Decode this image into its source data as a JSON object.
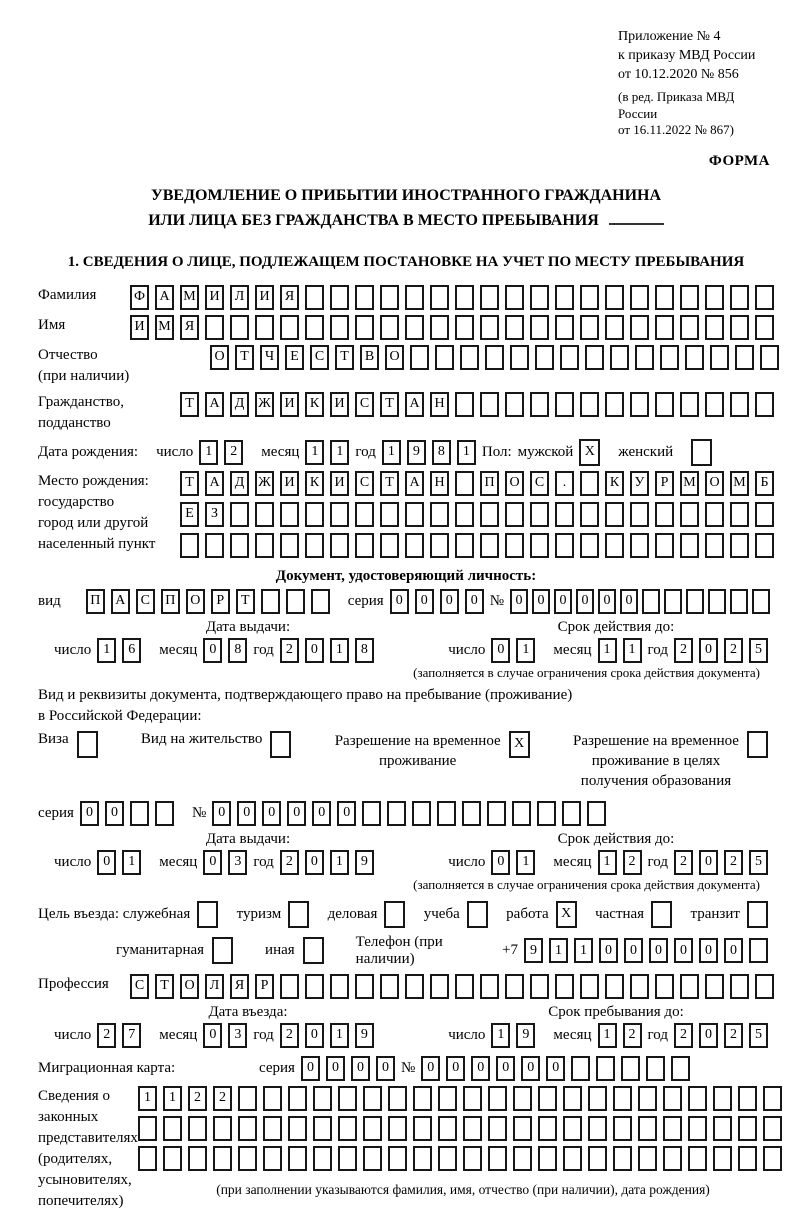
{
  "header": {
    "appendix_lines": [
      "Приложение № 4",
      "к приказу МВД России",
      "от 10.12.2020 № 856"
    ],
    "edition_lines": [
      "(в ред. Приказа МВД России",
      "от 16.11.2022 № 867)"
    ],
    "form_label": "ФОРМА"
  },
  "title": {
    "line1": "УВЕДОМЛЕНИЕ О ПРИБЫТИИ ИНОСТРАННОГО ГРАЖДАНИНА",
    "line2": "ИЛИ ЛИЦА БЕЗ ГРАЖДАНСТВА В МЕСТО ПРЕБЫВАНИЯ"
  },
  "section1_heading": "1. СВЕДЕНИЯ О ЛИЦЕ, ПОДЛЕЖАЩЕМ ПОСТАНОВКЕ НА УЧЕТ ПО МЕСТУ ПРЕБЫВАНИЯ",
  "labels": {
    "surname": "Фамилия",
    "name": "Имя",
    "patronymic": "Отчество",
    "patronymic2": "(при наличии)",
    "citizenship1": "Гражданство,",
    "citizenship2": "подданство",
    "birth_date": "Дата рождения:",
    "day": "число",
    "month": "месяц",
    "year": "год",
    "sex": "Пол:",
    "male": "мужской",
    "female": "женский",
    "birth_place1": "Место рождения:",
    "birth_place2": "государство",
    "birth_place3": "город или другой",
    "birth_place4": "населенный пункт",
    "identity_doc_heading": "Документ, удостоверяющий личность:",
    "doc_type": "вид",
    "series": "серия",
    "number": "№",
    "issue_date": "Дата выдачи:",
    "valid_until": "Срок действия до:",
    "valid_note": "(заполняется в случае ограничения срока действия документа)",
    "residence_doc_line1": "Вид и реквизиты документа, подтверждающего право на пребывание (проживание)",
    "residence_doc_line2": "в Российской Федерации:",
    "visa": "Виза",
    "residence_permit": "Вид на жительство",
    "temp_residence1": "Разрешение на временное",
    "temp_residence2": "проживание",
    "temp_residence_edu1": "Разрешение на временное",
    "temp_residence_edu2": "проживание в целях",
    "temp_residence_edu3": "получения образования",
    "entry_purpose": "Цель въезда: служебная",
    "tourism": "туризм",
    "business": "деловая",
    "study": "учеба",
    "work": "работа",
    "private": "частная",
    "transit": "транзит",
    "humanitarian": "гуманитарная",
    "other": "иная",
    "phone": "Телефон (при наличии)",
    "phone_prefix": "+7",
    "profession": "Профессия",
    "entry_date": "Дата въезда:",
    "stay_until": "Срок пребывания до:",
    "migration_card": "Миграционная карта:",
    "guardians1": "Сведения о",
    "guardians2": "законных",
    "guardians3": "представителях",
    "guardians4": "(родителях,",
    "guardians5": "усыновителях,",
    "guardians6": "попечителях)",
    "guardians_note": "(при заполнении указываются фамилия, имя, отчество (при наличии), дата рождения)"
  },
  "cells": {
    "surname": {
      "value": "ФАМИЛИЯ",
      "count": 26
    },
    "name": {
      "value": "ИМЯ",
      "count": 26
    },
    "patronymic": {
      "value": "ОТЧЕСТВО",
      "count": 23
    },
    "citizenship": {
      "value": "ТАДЖИКИСТАН",
      "count": 24
    },
    "birth_day": {
      "value": "12",
      "count": 2
    },
    "birth_month": {
      "value": "11",
      "count": 2
    },
    "birth_year": {
      "value": "1981",
      "count": 4
    },
    "male_box": {
      "value": "X",
      "count": 1
    },
    "female_box": {
      "value": "",
      "count": 1
    },
    "birth_place1": {
      "value": "ТАДЖИКИСТАН ПОС. КУРМОМБ",
      "count": 24
    },
    "birth_place2": {
      "value": "ЕЗ",
      "count": 24
    },
    "birth_place3": {
      "value": "",
      "count": 24
    },
    "doc_type": {
      "value": "ПАСПОРТ",
      "count": 10
    },
    "doc_series": {
      "value": "0000",
      "count": 4
    },
    "doc_number": {
      "value": "000000",
      "count": 12
    },
    "doc_issue_day": {
      "value": "16",
      "count": 2
    },
    "doc_issue_month": {
      "value": "08",
      "count": 2
    },
    "doc_issue_year": {
      "value": "2018",
      "count": 4
    },
    "doc_valid_day": {
      "value": "01",
      "count": 2
    },
    "doc_valid_month": {
      "value": "11",
      "count": 2
    },
    "doc_valid_year": {
      "value": "2025",
      "count": 4
    },
    "visa_box": {
      "value": "",
      "count": 1
    },
    "residence_permit_box": {
      "value": "",
      "count": 1
    },
    "temp_residence_box": {
      "value": "X",
      "count": 1
    },
    "temp_residence_edu_box": {
      "value": "",
      "count": 1
    },
    "res_series": {
      "value": "00",
      "count": 4
    },
    "res_number": {
      "value": "000000",
      "count": 16
    },
    "res_issue_day": {
      "value": "01",
      "count": 2
    },
    "res_issue_month": {
      "value": "03",
      "count": 2
    },
    "res_issue_year": {
      "value": "2019",
      "count": 4
    },
    "res_valid_day": {
      "value": "01",
      "count": 2
    },
    "res_valid_month": {
      "value": "12",
      "count": 2
    },
    "res_valid_year": {
      "value": "2025",
      "count": 4
    },
    "official_box": {
      "value": "",
      "count": 1
    },
    "tourism_box": {
      "value": "",
      "count": 1
    },
    "business_box": {
      "value": "",
      "count": 1
    },
    "study_box": {
      "value": "",
      "count": 1
    },
    "work_box": {
      "value": "X",
      "count": 1
    },
    "private_box": {
      "value": "",
      "count": 1
    },
    "transit_box": {
      "value": "",
      "count": 1
    },
    "humanitarian_box": {
      "value": "",
      "count": 1
    },
    "other_box": {
      "value": "",
      "count": 1
    },
    "phone": {
      "value": "911000000",
      "count": 10
    },
    "profession": {
      "value": "СТОЛЯР",
      "count": 26
    },
    "entry_day": {
      "value": "27",
      "count": 2
    },
    "entry_month": {
      "value": "03",
      "count": 2
    },
    "entry_year": {
      "value": "2019",
      "count": 4
    },
    "stay_day": {
      "value": "19",
      "count": 2
    },
    "stay_month": {
      "value": "12",
      "count": 2
    },
    "stay_year": {
      "value": "2025",
      "count": 4
    },
    "mig_series": {
      "value": "0000",
      "count": 4
    },
    "mig_number": {
      "value": "000000",
      "count": 11
    },
    "guardians1": {
      "value": "1122",
      "count": 26
    },
    "guardians2": {
      "value": "",
      "count": 26
    },
    "guardians3": {
      "value": "",
      "count": 26
    }
  }
}
